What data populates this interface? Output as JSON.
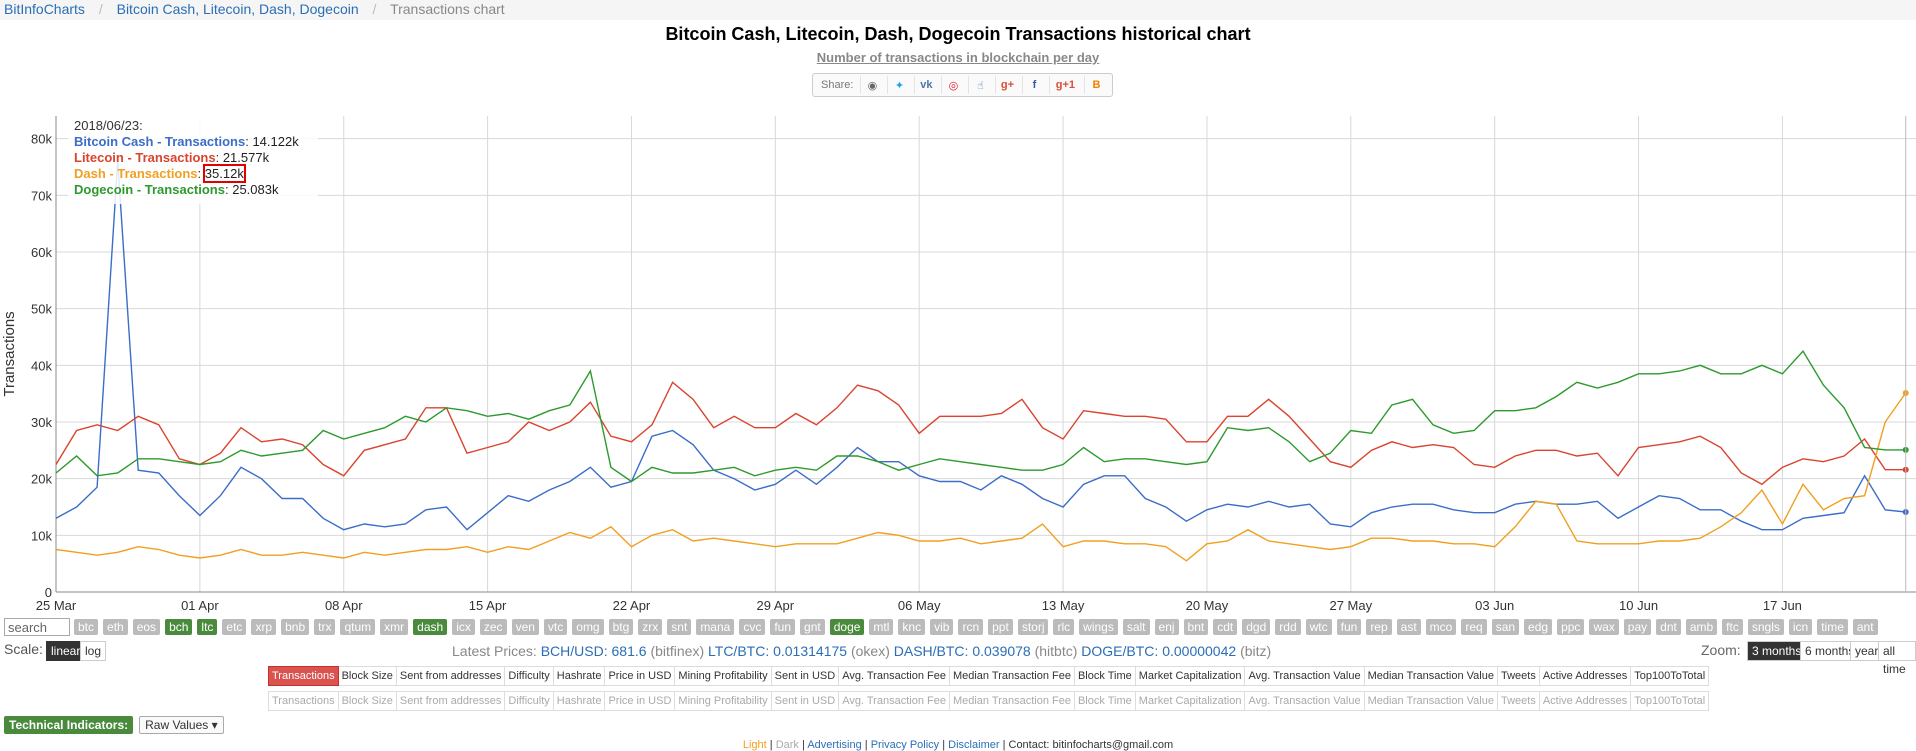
{
  "breadcrumb": {
    "home": "BitInfoCharts",
    "section": "Bitcoin Cash, Litecoin, Dash, Dogecoin",
    "current": "Transactions chart"
  },
  "header": {
    "title": "Bitcoin Cash, Litecoin, Dash, Dogecoin Transactions historical chart",
    "subtitle": "Number of transactions in blockchain per day"
  },
  "share": {
    "label": "Share:",
    "buttons": [
      "reddit-icon",
      "twitter-icon",
      "vk-icon",
      "weibo-icon",
      "like-icon",
      "gplus-icon",
      "facebook-icon",
      "gplus-one-icon",
      "blogger-icon"
    ]
  },
  "tooltip": {
    "date": "2018/06/23:",
    "rows": [
      {
        "name": "Bitcoin Cash - Transactions",
        "value": "14.122k",
        "color": "#3b6dc9"
      },
      {
        "name": "Litecoin - Transactions",
        "value": "21.577k",
        "color": "#d9442e"
      },
      {
        "name": "Dash - Transactions",
        "value": "35.12k",
        "color": "#f0a020"
      },
      {
        "name": "Dogecoin - Transactions",
        "value": "25.083k",
        "color": "#2e9a2e"
      }
    ]
  },
  "chart_data": {
    "type": "line",
    "ylabel": "Transactions",
    "ylim": [
      0,
      84000
    ],
    "yticks": [
      {
        "v": 0,
        "label": "0"
      },
      {
        "v": 10000,
        "label": "10k"
      },
      {
        "v": 20000,
        "label": "20k"
      },
      {
        "v": 30000,
        "label": "30k"
      },
      {
        "v": 40000,
        "label": "40k"
      },
      {
        "v": 50000,
        "label": "50k"
      },
      {
        "v": 60000,
        "label": "60k"
      },
      {
        "v": 70000,
        "label": "70k"
      },
      {
        "v": 80000,
        "label": "80k"
      }
    ],
    "xticks": [
      {
        "day": 0,
        "label": "25 Mar"
      },
      {
        "day": 7,
        "label": "01 Apr"
      },
      {
        "day": 14,
        "label": "08 Apr"
      },
      {
        "day": 21,
        "label": "15 Apr"
      },
      {
        "day": 28,
        "label": "22 Apr"
      },
      {
        "day": 35,
        "label": "29 Apr"
      },
      {
        "day": 42,
        "label": "06 May"
      },
      {
        "day": 49,
        "label": "13 May"
      },
      {
        "day": 56,
        "label": "20 May"
      },
      {
        "day": 63,
        "label": "27 May"
      },
      {
        "day": 70,
        "label": "03 Jun"
      },
      {
        "day": 77,
        "label": "10 Jun"
      },
      {
        "day": 84,
        "label": "17 Jun"
      }
    ],
    "x_range": [
      0,
      90.5
    ],
    "grid": true,
    "series": [
      {
        "name": "Bitcoin Cash - Transactions",
        "color": "#3b6dc9",
        "values": [
          13000,
          15000,
          18500,
          76000,
          21500,
          21000,
          17000,
          13500,
          17000,
          22000,
          20000,
          16500,
          16500,
          13000,
          11000,
          12000,
          11500,
          12000,
          14500,
          15000,
          11000,
          14000,
          17000,
          16000,
          18000,
          19500,
          22000,
          18500,
          19500,
          27500,
          28500,
          26000,
          21500,
          20000,
          18000,
          19000,
          21500,
          19000,
          22000,
          25500,
          23000,
          23000,
          20500,
          19500,
          19500,
          18000,
          20500,
          19000,
          16500,
          15000,
          19000,
          20500,
          20500,
          16500,
          15000,
          12500,
          14500,
          15500,
          15000,
          16000,
          15000,
          15500,
          12000,
          11500,
          14000,
          15000,
          15500,
          15500,
          14500,
          14000,
          14000,
          15500,
          16000,
          15500,
          15500,
          16000,
          13000,
          15000,
          17000,
          16500,
          14500,
          14500,
          12500,
          11000,
          11000,
          13000,
          13500,
          14000,
          20500,
          14500,
          14122
        ]
      },
      {
        "name": "Litecoin - Transactions",
        "color": "#d9442e",
        "values": [
          22500,
          28500,
          29500,
          28500,
          31000,
          29500,
          23500,
          22500,
          24500,
          29000,
          26500,
          27000,
          26000,
          22500,
          20500,
          25000,
          26000,
          27000,
          32500,
          32500,
          24500,
          25500,
          26500,
          30000,
          28500,
          30000,
          33500,
          27500,
          26500,
          29500,
          37000,
          34000,
          29000,
          31000,
          29000,
          29000,
          31500,
          29500,
          32500,
          36500,
          35500,
          33000,
          28000,
          31000,
          31000,
          31000,
          31500,
          34000,
          29000,
          27000,
          32000,
          31500,
          31000,
          31000,
          30500,
          26500,
          26500,
          31000,
          31000,
          34000,
          31000,
          27000,
          23000,
          22000,
          25000,
          26500,
          25500,
          26000,
          25500,
          22500,
          22000,
          24000,
          25000,
          25000,
          24000,
          24500,
          20500,
          25500,
          26000,
          26500,
          27500,
          25500,
          21000,
          19000,
          22000,
          23500,
          23000,
          24000,
          27000,
          21577,
          21577
        ]
      },
      {
        "name": "Dash - Transactions",
        "color": "#f0a020",
        "values": [
          7500,
          7000,
          6500,
          7000,
          8000,
          7500,
          6500,
          6000,
          6500,
          7500,
          6500,
          6500,
          7000,
          6500,
          6000,
          7000,
          6500,
          7000,
          7500,
          7500,
          8000,
          7000,
          8000,
          7500,
          9000,
          10500,
          9500,
          11500,
          8000,
          10000,
          11000,
          9000,
          9500,
          9000,
          8500,
          8000,
          8500,
          8500,
          8500,
          9500,
          10500,
          10000,
          9000,
          9000,
          9500,
          8500,
          9000,
          9500,
          12000,
          8000,
          9000,
          9000,
          8500,
          8500,
          8000,
          5500,
          8500,
          9000,
          11000,
          9000,
          8500,
          8000,
          7500,
          8000,
          9500,
          9500,
          9000,
          9000,
          8500,
          8500,
          8000,
          11500,
          16000,
          15500,
          9000,
          8500,
          8500,
          8500,
          9000,
          9000,
          9500,
          11500,
          14000,
          18000,
          12000,
          19000,
          14500,
          16500,
          17000,
          30000,
          35120
        ]
      },
      {
        "name": "Dogecoin - Transactions",
        "color": "#2e9a2e",
        "values": [
          21000,
          24000,
          20500,
          21000,
          23500,
          23500,
          23000,
          22500,
          23000,
          25000,
          24000,
          24500,
          25000,
          28500,
          27000,
          28000,
          29000,
          31000,
          30000,
          32500,
          32000,
          31000,
          31500,
          30500,
          32000,
          33000,
          39000,
          22000,
          19500,
          22000,
          21000,
          21000,
          21500,
          22000,
          20500,
          21500,
          22000,
          21500,
          24000,
          24000,
          23000,
          21500,
          22500,
          23500,
          23000,
          22500,
          22000,
          21500,
          21500,
          22500,
          25500,
          23000,
          23500,
          23500,
          23000,
          22500,
          23000,
          29000,
          28500,
          29000,
          26500,
          23000,
          24500,
          28500,
          28000,
          33000,
          34000,
          29500,
          28000,
          28500,
          32000,
          32000,
          32500,
          34500,
          37000,
          36000,
          37000,
          38500,
          38500,
          39000,
          40000,
          38500,
          38500,
          40000,
          38500,
          42500,
          36500,
          32500,
          25500,
          25083,
          25083
        ]
      }
    ]
  },
  "coins": [
    {
      "label": "btc",
      "on": false
    },
    {
      "label": "eth",
      "on": false
    },
    {
      "label": "eos",
      "on": false
    },
    {
      "label": "bch",
      "on": true
    },
    {
      "label": "ltc",
      "on": true
    },
    {
      "label": "etc",
      "on": false
    },
    {
      "label": "xrp",
      "on": false
    },
    {
      "label": "bnb",
      "on": false
    },
    {
      "label": "trx",
      "on": false
    },
    {
      "label": "qtum",
      "on": false
    },
    {
      "label": "xmr",
      "on": false
    },
    {
      "label": "dash",
      "on": true
    },
    {
      "label": "icx",
      "on": false
    },
    {
      "label": "zec",
      "on": false
    },
    {
      "label": "ven",
      "on": false
    },
    {
      "label": "vtc",
      "on": false
    },
    {
      "label": "omg",
      "on": false
    },
    {
      "label": "btg",
      "on": false
    },
    {
      "label": "zrx",
      "on": false
    },
    {
      "label": "snt",
      "on": false
    },
    {
      "label": "mana",
      "on": false
    },
    {
      "label": "cvc",
      "on": false
    },
    {
      "label": "fun",
      "on": false
    },
    {
      "label": "gnt",
      "on": false
    },
    {
      "label": "doge",
      "on": true
    },
    {
      "label": "mtl",
      "on": false
    },
    {
      "label": "knc",
      "on": false
    },
    {
      "label": "vib",
      "on": false
    },
    {
      "label": "rcn",
      "on": false
    },
    {
      "label": "ppt",
      "on": false
    },
    {
      "label": "storj",
      "on": false
    },
    {
      "label": "rlc",
      "on": false
    },
    {
      "label": "wings",
      "on": false
    },
    {
      "label": "salt",
      "on": false
    },
    {
      "label": "enj",
      "on": false
    },
    {
      "label": "bnt",
      "on": false
    },
    {
      "label": "cdt",
      "on": false
    },
    {
      "label": "dgd",
      "on": false
    },
    {
      "label": "rdd",
      "on": false
    },
    {
      "label": "wtc",
      "on": false
    },
    {
      "label": "fun",
      "on": false
    },
    {
      "label": "rep",
      "on": false
    },
    {
      "label": "ast",
      "on": false
    },
    {
      "label": "mco",
      "on": false
    },
    {
      "label": "req",
      "on": false
    },
    {
      "label": "san",
      "on": false
    },
    {
      "label": "edg",
      "on": false
    },
    {
      "label": "ppc",
      "on": false
    },
    {
      "label": "wax",
      "on": false
    },
    {
      "label": "pay",
      "on": false
    },
    {
      "label": "dnt",
      "on": false
    },
    {
      "label": "amb",
      "on": false
    },
    {
      "label": "ftc",
      "on": false
    },
    {
      "label": "sngls",
      "on": false
    },
    {
      "label": "icn",
      "on": false
    },
    {
      "label": "time",
      "on": false
    },
    {
      "label": "ant",
      "on": false
    }
  ],
  "search": {
    "placeholder": "search"
  },
  "scale": {
    "label": "Scale:",
    "linear": "linear",
    "log": "log"
  },
  "prices": {
    "label": "Latest Prices:",
    "bch": "BCH/USD: 681.6",
    "bch_src": "(bitfinex)",
    "ltc": "LTC/BTC: 0.01314175",
    "ltc_src": "(okex)",
    "dash": "DASH/BTC: 0.039078",
    "dash_src": "(hitbtc)",
    "doge": "DOGE/BTC: 0.00000042",
    "doge_src": "(bitz)"
  },
  "zoom": {
    "label": "Zoom:",
    "options": [
      "3 months",
      "6 months",
      "year",
      "all time"
    ],
    "active": 0
  },
  "metrics": [
    "Transactions",
    "Block Size",
    "Sent from addresses",
    "Difficulty",
    "Hashrate",
    "Price in USD",
    "Mining Profitability",
    "Sent in USD",
    "Avg. Transaction Fee",
    "Median Transaction Fee",
    "Block Time",
    "Market Capitalization",
    "Avg. Transaction Value",
    "Median Transaction Value",
    "Tweets",
    "Active Addresses",
    "Top100ToTotal"
  ],
  "technical": {
    "label": "Technical Indicators:",
    "value": "Raw Values ▾"
  },
  "footer": {
    "light": "Light",
    "dark": "Dark",
    "advertising": "Advertising",
    "privacy": "Privacy Policy",
    "disclaimer": "Disclaimer",
    "contact": "Contact: bitinfocharts@gmail.com"
  }
}
